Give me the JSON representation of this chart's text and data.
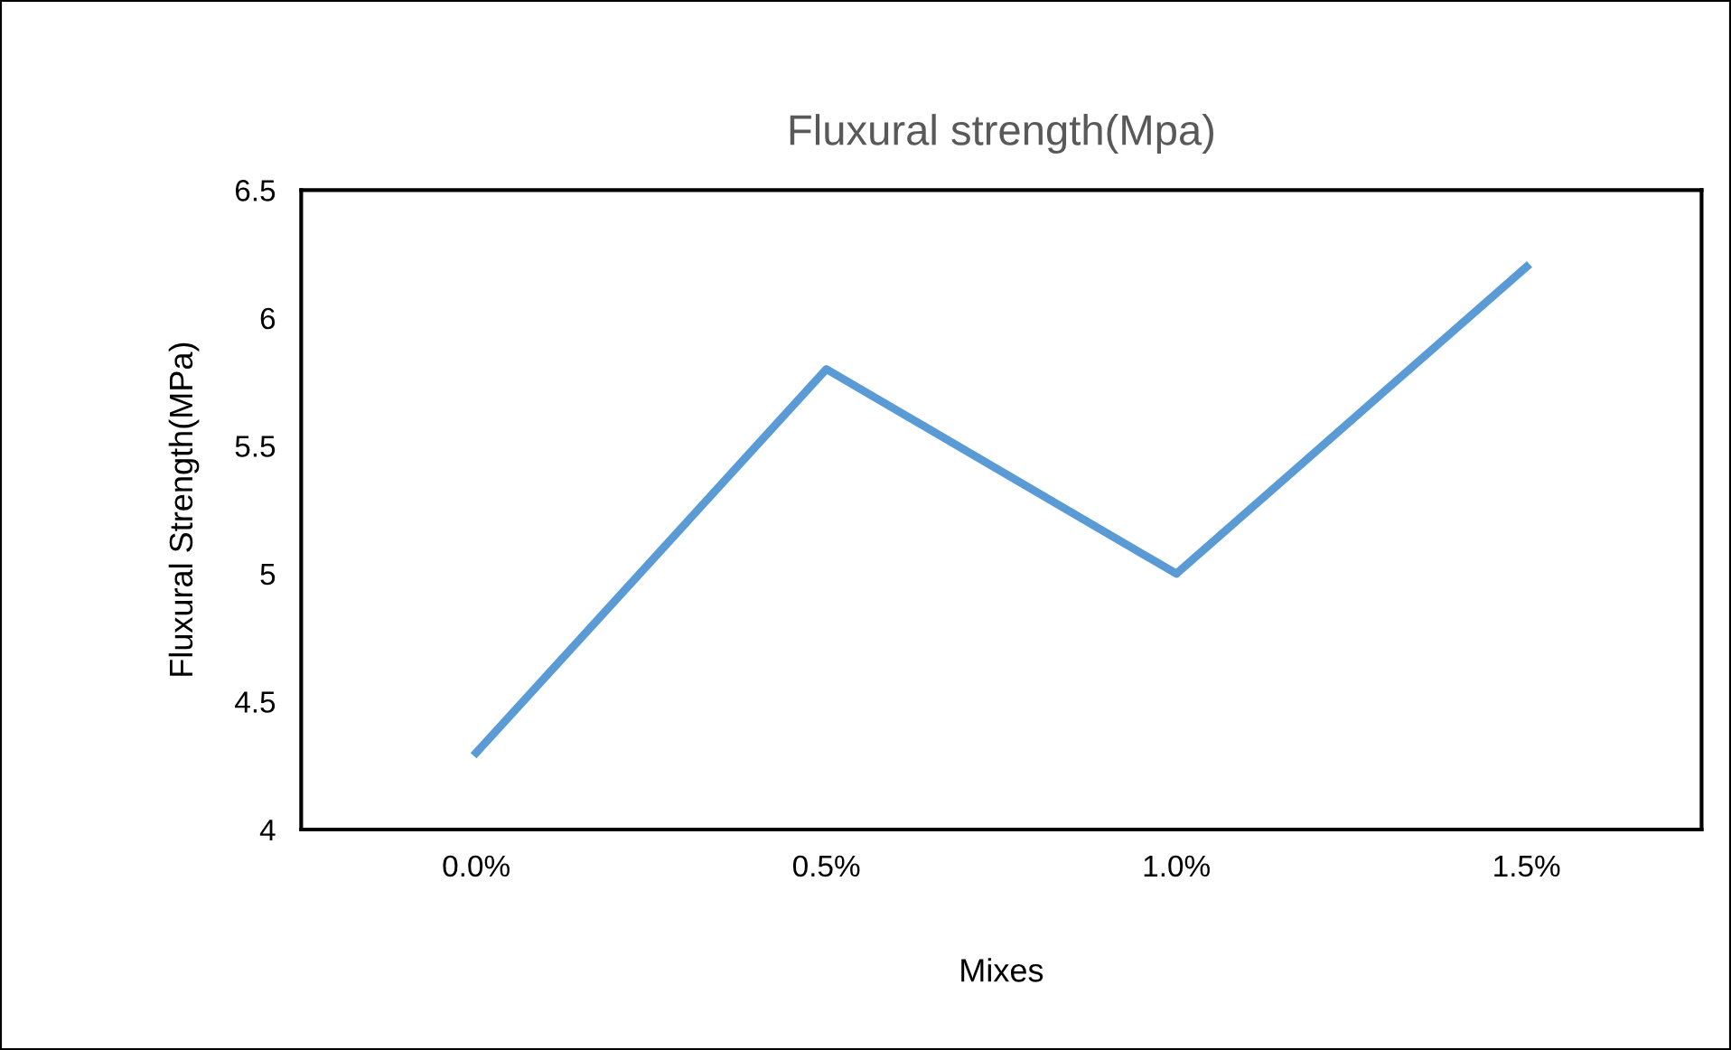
{
  "chart_data": {
    "type": "line",
    "title": "Fluxural strength(Mpa)",
    "xlabel": "Mixes",
    "ylabel": "Fluxural Strength(MPa)",
    "categories": [
      "0.0%",
      "0.5%",
      "1.0%",
      "1.5%"
    ],
    "series": [
      {
        "color": "#5b9bd5",
        "values": [
          4.3,
          5.8,
          5.0,
          6.2
        ]
      }
    ],
    "ylim": [
      4,
      6.5
    ],
    "yticks": [
      4,
      4.5,
      5,
      5.5,
      6,
      6.5
    ],
    "grid": false,
    "legend": false,
    "marker": "none",
    "line_style": "solid"
  }
}
